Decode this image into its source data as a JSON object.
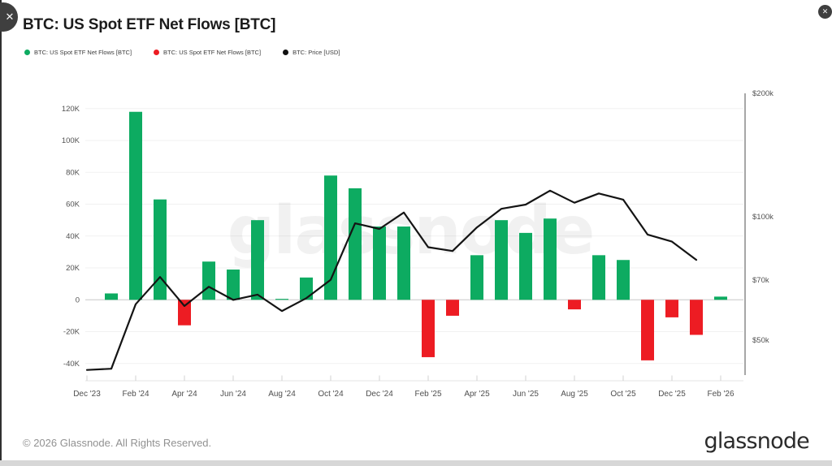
{
  "window": {
    "close_glyph": "✕"
  },
  "header": {
    "title": "BTC: US Spot ETF Net Flows [BTC]"
  },
  "legend": [
    {
      "label": "BTC: US Spot ETF Net Flows [BTC]",
      "color": "#0dab61"
    },
    {
      "label": "BTC: US Spot ETF Net Flows [BTC]",
      "color": "#ed1c23"
    },
    {
      "label": "BTC: Price [USD]",
      "color": "#111111"
    }
  ],
  "watermark": "glassnode",
  "footer": {
    "copyright": "© 2026 Glassnode. All Rights Reserved.",
    "logo": "glassnode"
  },
  "chart_data": {
    "type": "bar+line",
    "title": "BTC: US Spot ETF Net Flows [BTC]",
    "months": [
      "Dec '23",
      "Jan '24",
      "Feb '24",
      "Mar '24",
      "Apr '24",
      "May '24",
      "Jun '24",
      "Jul '24",
      "Aug '24",
      "Sep '24",
      "Oct '24",
      "Nov '24",
      "Dec '24",
      "Jan '25",
      "Feb '25",
      "Mar '25",
      "Apr '25",
      "May '25",
      "Jun '25",
      "Jul '25",
      "Aug '25",
      "Sep '25",
      "Oct '25",
      "Nov '25",
      "Dec '25",
      "Jan '26",
      "Feb '26"
    ],
    "series": [
      {
        "name": "BTC: US Spot ETF Net Flows [BTC]",
        "type": "bar",
        "axis": "left",
        "unit": "BTC",
        "values": [
          null,
          4000,
          118000,
          63000,
          -16000,
          24000,
          19000,
          50000,
          600,
          14000,
          78000,
          70000,
          46000,
          46000,
          -36000,
          -10000,
          28000,
          50000,
          42000,
          51000,
          -6000,
          28000,
          25000,
          -38000,
          -11000,
          -22000,
          2000
        ]
      },
      {
        "name": "BTC: Price [USD]",
        "type": "line",
        "axis": "right",
        "unit": "USD",
        "values": [
          42300,
          42600,
          61200,
          71300,
          60600,
          67500,
          62700,
          64600,
          58900,
          63300,
          70200,
          96400,
          93400,
          102400,
          84300,
          82500,
          94200,
          104600,
          107100,
          115800,
          108200,
          114000,
          110100,
          90500,
          87000,
          78500,
          null
        ]
      }
    ],
    "left_axis": {
      "ticks": [
        120000,
        100000,
        80000,
        60000,
        40000,
        20000,
        0,
        -20000,
        -40000
      ],
      "tick_labels": [
        "120K",
        "100K",
        "80K",
        "60K",
        "40K",
        "20K",
        "0",
        "-20K",
        "-40K"
      ],
      "range": [
        -50000,
        130000
      ],
      "scale": "linear",
      "grid": true
    },
    "right_axis": {
      "ticks": [
        200000,
        100000,
        70000,
        50000
      ],
      "tick_labels": [
        "$200k",
        "$100k",
        "$70k",
        "$50k"
      ],
      "range": [
        41000,
        200000
      ],
      "scale": "log",
      "grid": false
    },
    "x_tick_labels": [
      "Dec '23",
      "Feb '24",
      "Apr '24",
      "Jun '24",
      "Aug '24",
      "Oct '24",
      "Dec '24",
      "Feb '25",
      "Apr '25",
      "Jun '25",
      "Aug '25",
      "Oct '25",
      "Dec '25",
      "Feb '26"
    ],
    "colors": {
      "positive": "#0dab61",
      "negative": "#ed1c23",
      "price_line": "#141414"
    },
    "legend_position": "top-left"
  }
}
